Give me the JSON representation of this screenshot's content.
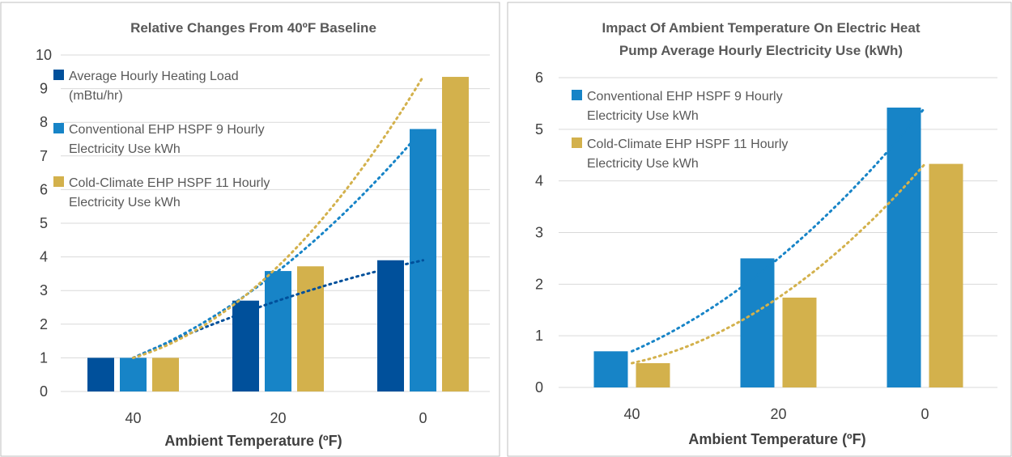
{
  "chart_data": [
    {
      "type": "bar",
      "title": "Relative Changes From 40ºF Baseline",
      "xlabel": "Ambient Temperature (ºF)",
      "ylabel": "",
      "ylim": [
        0,
        10
      ],
      "yticks": [
        "0",
        "1",
        "2",
        "3",
        "4",
        "5",
        "6",
        "7",
        "8",
        "9",
        "10"
      ],
      "categories": [
        "40",
        "20",
        "0"
      ],
      "legend_position": "top-left",
      "grid": true,
      "trendlines": "polynomial, dotted",
      "series": [
        {
          "name": "Average Hourly Heating Load (mBtu/hr)",
          "legend_lines": [
            "Average Hourly Heating Load",
            "(mBtu/hr)"
          ],
          "color": "#00509b",
          "values": [
            1.0,
            2.7,
            3.9
          ]
        },
        {
          "name": "Conventional EHP HSPF 9 Hourly Electricity Use kWh",
          "legend_lines": [
            "Conventional EHP HSPF 9 Hourly",
            "Electricity Use kWh"
          ],
          "color": "#1784c7",
          "values": [
            1.0,
            3.58,
            7.8
          ]
        },
        {
          "name": "Cold-Climate EHP HSPF 11 Hourly Electricity Use kWh",
          "legend_lines": [
            "Cold-Climate EHP HSPF 11 Hourly",
            "Electricity Use kWh"
          ],
          "color": "#d3b14c",
          "values": [
            1.0,
            3.72,
            9.35
          ]
        }
      ]
    },
    {
      "type": "bar",
      "title": "Impact Of Ambient Temperature On Electric Heat Pump Average Hourly Electricity Use (kWh)",
      "title_lines": [
        "Impact Of Ambient Temperature On Electric Heat",
        "Pump Average Hourly Electricity Use (kWh)"
      ],
      "xlabel": "Ambient Temperature (ºF)",
      "ylabel": "",
      "ylim": [
        0,
        6
      ],
      "yticks": [
        "0",
        "1",
        "2",
        "3",
        "4",
        "5",
        "6"
      ],
      "categories": [
        "40",
        "20",
        "0"
      ],
      "legend_position": "top-left",
      "grid": true,
      "trendlines": "polynomial, dotted",
      "series": [
        {
          "name": "Conventional EHP HSPF 9 Hourly Electricity Use kWh",
          "legend_lines": [
            "Conventional EHP HSPF 9 Hourly",
            "Electricity Use kWh"
          ],
          "color": "#1784c7",
          "values": [
            0.7,
            2.5,
            5.42
          ]
        },
        {
          "name": "Cold-Climate EHP HSPF 11 Hourly Electricity Use kWh",
          "legend_lines": [
            "Cold-Climate EHP HSPF 11 Hourly",
            "Electricity Use kWh"
          ],
          "color": "#d3b14c",
          "values": [
            0.47,
            1.74,
            4.33
          ]
        }
      ]
    }
  ]
}
